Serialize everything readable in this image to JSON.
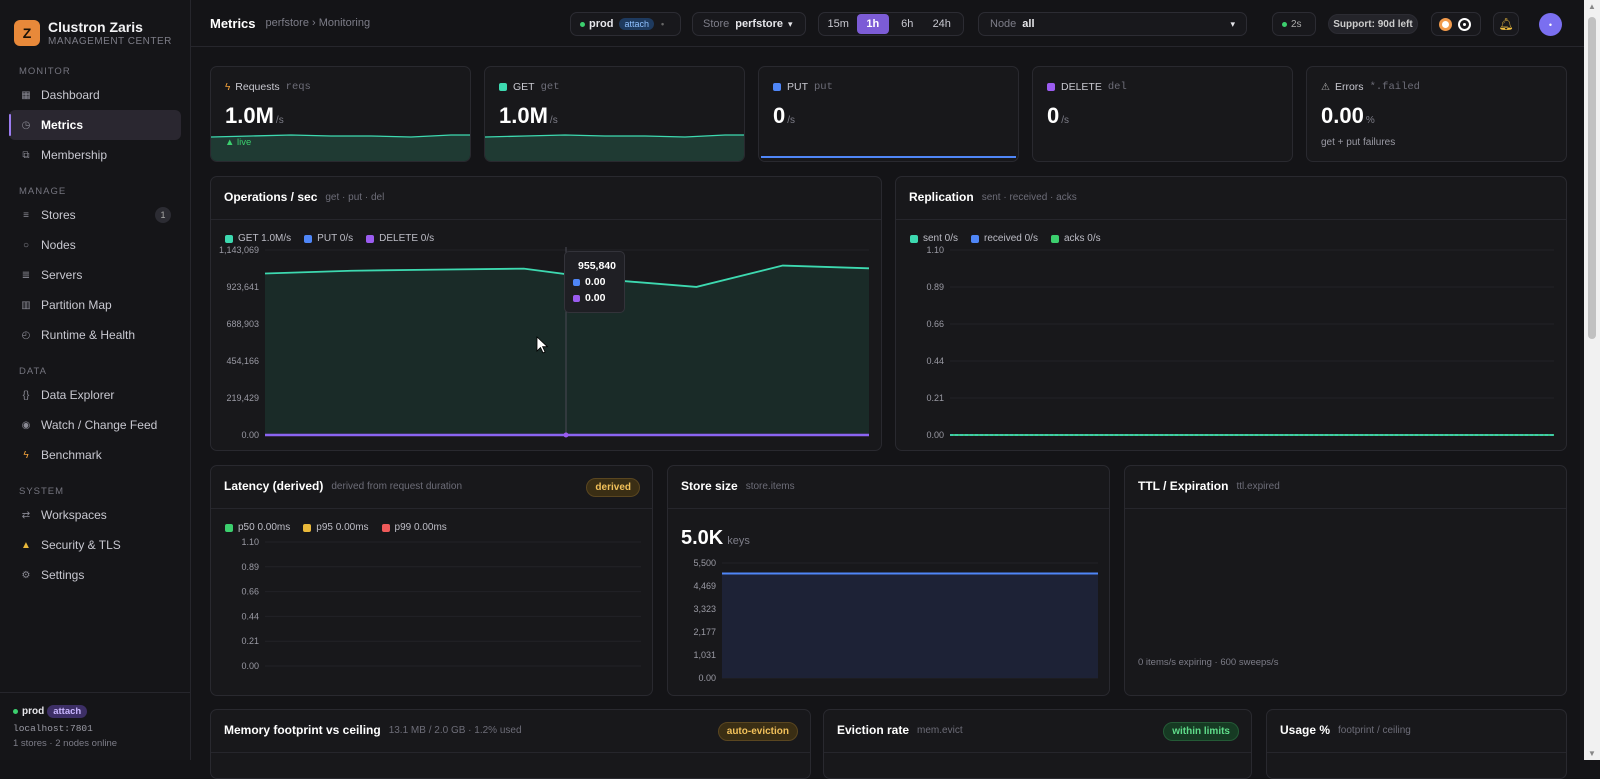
{
  "brand": {
    "logo": "Z",
    "name": "Clustron Zaris",
    "sub": "MANAGEMENT CENTER"
  },
  "sidebar": {
    "sections": [
      {
        "title": "MONITOR",
        "items": [
          {
            "label": "Dashboard",
            "icon": "grid-icon"
          },
          {
            "label": "Metrics",
            "icon": "gauge-icon",
            "active": true
          },
          {
            "label": "Membership",
            "icon": "people-icon"
          }
        ]
      },
      {
        "title": "MANAGE",
        "items": [
          {
            "label": "Stores",
            "icon": "stack-icon",
            "count": "1"
          },
          {
            "label": "Nodes",
            "icon": "circle-icon"
          },
          {
            "label": "Servers",
            "icon": "server-icon"
          },
          {
            "label": "Partition Map",
            "icon": "map-icon"
          },
          {
            "label": "Runtime & Health",
            "icon": "pulse-icon"
          }
        ]
      },
      {
        "title": "DATA",
        "items": [
          {
            "label": "Data Explorer",
            "icon": "braces-icon"
          },
          {
            "label": "Watch / Change Feed",
            "icon": "eye-icon"
          },
          {
            "label": "Benchmark",
            "icon": "bolt-icon"
          }
        ]
      },
      {
        "title": "SYSTEM",
        "items": [
          {
            "label": "Workspaces",
            "icon": "swap-icon"
          },
          {
            "label": "Security & TLS",
            "icon": "lock-icon"
          },
          {
            "label": "Settings",
            "icon": "gear-icon"
          }
        ]
      }
    ],
    "footer": {
      "env": "prod",
      "attach": "attach",
      "host": "localhost:7801",
      "status": "1 stores · 2 nodes online"
    }
  },
  "topbar": {
    "title": "Metrics",
    "crumb": "perfstore › Monitoring",
    "env": "prod",
    "attach": "attach",
    "store_label": "Store",
    "store": "perfstore",
    "ranges": [
      "15m",
      "1h",
      "6h",
      "24h"
    ],
    "range_active": "1h",
    "node_label": "Node",
    "node": "all",
    "refresh": "2s",
    "support": "Support: 90d left"
  },
  "kpis": [
    {
      "title": "Requests",
      "metric": "reqs",
      "value": "1.0M",
      "unit": "/s",
      "note": "▲ live",
      "color": "#f5a33b",
      "icon": "bolt-icon"
    },
    {
      "title": "GET",
      "metric": "get",
      "value": "1.0M",
      "unit": "/s",
      "note": "",
      "color": "#3dd9b0",
      "icon": "square-icon"
    },
    {
      "title": "PUT",
      "metric": "put",
      "value": "0",
      "unit": "/s",
      "note": "",
      "color": "#4f86f7",
      "icon": "square-icon"
    },
    {
      "title": "DELETE",
      "metric": "del",
      "value": "0",
      "unit": "/s",
      "note": "",
      "color": "#9b5cf0",
      "icon": "square-icon"
    },
    {
      "title": "Errors",
      "metric": "*.failed",
      "value": "0.00",
      "unit": "%",
      "note": "get + put failures",
      "color": "#aaaaaa",
      "icon": "warning-icon"
    }
  ],
  "ops": {
    "title": "Operations / sec",
    "sub": "get · put · del",
    "legend": [
      {
        "label": "GET 1.0M/s",
        "color": "#3dd9b0"
      },
      {
        "label": "PUT 0/s",
        "color": "#4f86f7"
      },
      {
        "label": "DELETE 0/s",
        "color": "#9b5cf0"
      }
    ],
    "tooltip": [
      {
        "value": "955,840",
        "color": "#3dd9b0"
      },
      {
        "value": "0.00",
        "color": "#4f86f7"
      },
      {
        "value": "0.00",
        "color": "#9b5cf0"
      }
    ]
  },
  "replication": {
    "title": "Replication",
    "sub": "sent · received · acks",
    "legend": [
      {
        "label": "sent 0/s",
        "color": "#3dd9b0"
      },
      {
        "label": "received 0/s",
        "color": "#4f86f7"
      },
      {
        "label": "acks 0/s",
        "color": "#3ccf6e"
      }
    ]
  },
  "latency": {
    "title": "Latency (derived)",
    "sub": "derived from request duration",
    "badge": "derived",
    "legend": [
      {
        "label": "p50 0.00ms",
        "color": "#3ccf6e"
      },
      {
        "label": "p95 0.00ms",
        "color": "#e9b83a"
      },
      {
        "label": "p99 0.00ms",
        "color": "#ef5a5a"
      }
    ]
  },
  "storesize": {
    "title": "Store size",
    "sub": "store.items",
    "value": "5.0K",
    "unit": "keys"
  },
  "ttl": {
    "title": "TTL / Expiration",
    "sub": "ttl.expired",
    "note": "0 items/s expiring · 600 sweeps/s"
  },
  "memory": {
    "title": "Memory footprint vs ceiling",
    "sub": "13.1 MB / 2.0 GB · 1.2% used",
    "badge": "auto-eviction"
  },
  "eviction": {
    "title": "Eviction rate",
    "sub": "mem.evict",
    "badge": "within limits"
  },
  "usage": {
    "title": "Usage %",
    "sub": "footprint / ceiling"
  },
  "chart_data": [
    {
      "type": "area",
      "title": "Operations / sec",
      "x": [
        0,
        1,
        2,
        3,
        4,
        5,
        6,
        7
      ],
      "yticks": [
        "0.00",
        "219,429",
        "454,166",
        "688,903",
        "923,641",
        "1,143,069"
      ],
      "ylim": [
        0,
        1143069
      ],
      "series": [
        {
          "name": "GET",
          "color": "#3dd9b0",
          "values": [
            998000,
            1015000,
            1022000,
            1028000,
            958000,
            915000,
            1047000,
            1030000
          ]
        },
        {
          "name": "PUT",
          "color": "#4f86f7",
          "values": [
            0,
            0,
            0,
            0,
            0,
            0,
            0,
            0
          ]
        },
        {
          "name": "DELETE",
          "color": "#9b5cf0",
          "values": [
            0,
            0,
            0,
            0,
            0,
            0,
            0,
            0
          ]
        }
      ]
    },
    {
      "type": "line",
      "title": "Replication",
      "yticks": [
        "0.00",
        "0.21",
        "0.44",
        "0.66",
        "0.89",
        "1.10"
      ],
      "ylim": [
        0,
        1.1
      ],
      "series": [
        {
          "name": "sent",
          "color": "#3dd9b0",
          "values": [
            0,
            0
          ]
        },
        {
          "name": "received",
          "color": "#4f86f7",
          "values": [
            0,
            0
          ]
        },
        {
          "name": "acks",
          "color": "#3ccf6e",
          "values": [
            0,
            0
          ]
        }
      ]
    },
    {
      "type": "line",
      "title": "Latency (derived)",
      "yticks": [
        "0.00",
        "0.21",
        "0.44",
        "0.66",
        "0.89",
        "1.10"
      ],
      "ylim": [
        0,
        1.1
      ],
      "series": [
        {
          "name": "p50",
          "color": "#3ccf6e",
          "values": []
        },
        {
          "name": "p95",
          "color": "#e9b83a",
          "values": []
        },
        {
          "name": "p99",
          "color": "#ef5a5a",
          "values": []
        }
      ]
    },
    {
      "type": "area",
      "title": "Store size",
      "yticks": [
        "0.00",
        "1,031",
        "2,177",
        "3,323",
        "4,469",
        "5,500"
      ],
      "ylim": [
        0,
        5500
      ],
      "series": [
        {
          "name": "store.items",
          "color": "#4f86f7",
          "values": [
            5000,
            5000
          ]
        }
      ]
    }
  ]
}
